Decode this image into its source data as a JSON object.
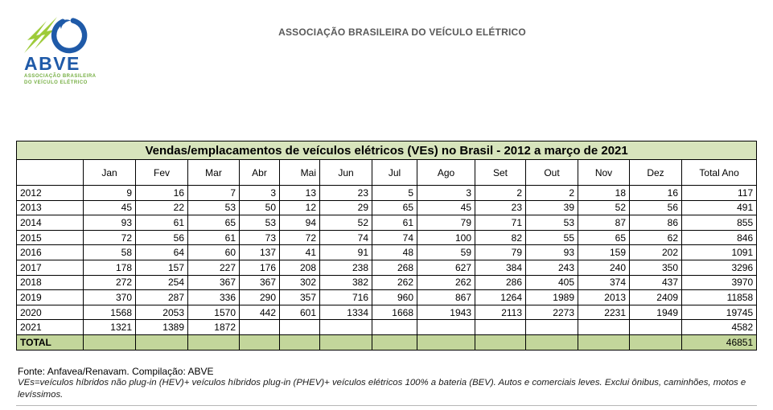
{
  "header": {
    "org_title": "ASSOCIAÇÃO BRASILEIRA DO VEÍCULO ELÉTRICO",
    "text_color": "#595959"
  },
  "logo": {
    "abbr": "ABVE",
    "subtitle_line1": "ASSOCIAÇÃO BRASILEIRA",
    "subtitle_line2": "DO VEÍCULO ELÉTRICO",
    "icons": {
      "bolts": "lightning-bolts-icon",
      "swoosh": "blue-swoosh-icon"
    },
    "colors": {
      "bolt_green": "#9ECB3A",
      "blue": "#1F5AA8",
      "subtitle_green": "#76AF43"
    }
  },
  "table": {
    "title": "Vendas/emplacamentos de veículos elétricos (VEs) no Brasil - 2012 a março de 2021",
    "columns": [
      "",
      "Jan",
      "Fev",
      "Mar",
      "Abr",
      "Mai",
      "Jun",
      "Jul",
      "Ago",
      "Set",
      "Out",
      "Nov",
      "Dez",
      "Total Ano"
    ],
    "rows": [
      {
        "year": "2012",
        "values": [
          "9",
          "16",
          "7",
          "3",
          "13",
          "23",
          "5",
          "3",
          "2",
          "2",
          "18",
          "16"
        ],
        "total": "117"
      },
      {
        "year": "2013",
        "values": [
          "45",
          "22",
          "53",
          "50",
          "12",
          "29",
          "65",
          "45",
          "23",
          "39",
          "52",
          "56"
        ],
        "total": "491"
      },
      {
        "year": "2014",
        "values": [
          "93",
          "61",
          "65",
          "53",
          "94",
          "52",
          "61",
          "79",
          "71",
          "53",
          "87",
          "86"
        ],
        "total": "855"
      },
      {
        "year": "2015",
        "values": [
          "72",
          "56",
          "61",
          "73",
          "72",
          "74",
          "74",
          "100",
          "82",
          "55",
          "65",
          "62"
        ],
        "total": "846"
      },
      {
        "year": "2016",
        "values": [
          "58",
          "64",
          "60",
          "137",
          "41",
          "91",
          "48",
          "59",
          "79",
          "93",
          "159",
          "202"
        ],
        "total": "1091"
      },
      {
        "year": "2017",
        "values": [
          "178",
          "157",
          "227",
          "176",
          "208",
          "238",
          "268",
          "627",
          "384",
          "243",
          "240",
          "350"
        ],
        "total": "3296"
      },
      {
        "year": "2018",
        "values": [
          "272",
          "254",
          "367",
          "367",
          "302",
          "382",
          "262",
          "262",
          "286",
          "405",
          "374",
          "437"
        ],
        "total": "3970"
      },
      {
        "year": "2019",
        "values": [
          "370",
          "287",
          "336",
          "290",
          "357",
          "716",
          "960",
          "867",
          "1264",
          "1989",
          "2013",
          "2409"
        ],
        "total": "11858"
      },
      {
        "year": "2020",
        "values": [
          "1568",
          "2053",
          "1570",
          "442",
          "601",
          "1334",
          "1668",
          "1943",
          "2113",
          "2273",
          "2231",
          "1949"
        ],
        "total": "19745"
      },
      {
        "year": "2021",
        "values": [
          "1321",
          "1389",
          "1872",
          "",
          "",
          "",
          "",
          "",
          "",
          "",
          "",
          ""
        ],
        "total": "4582"
      }
    ],
    "total_row": {
      "label": "TOTAL",
      "values": [
        "",
        "",
        "",
        "",
        "",
        "",
        "",
        "",
        "",
        "",
        "",
        ""
      ],
      "total": "46851"
    },
    "colors": {
      "title_bg": "#D7E4BC",
      "total_bg": "#C3D69B",
      "border": "#000000"
    }
  },
  "footer": {
    "source": "Fonte: Anfavea/Renavam. Compilação: ABVE",
    "note_line1": "VEs=veículos híbridos não plug-in (HEV)+ veículos híbridos plug-in (PHEV)+ veículos elétricos 100% a bateria (BEV). Autos e comerciais leves. Exclui ônibus, caminhões, motos e",
    "note_line2": "levíssimos."
  }
}
